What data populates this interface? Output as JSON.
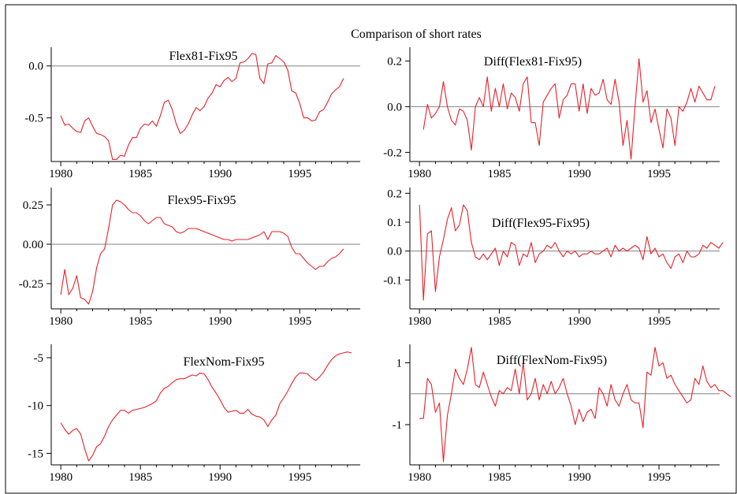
{
  "figure": {
    "title": "Comparison of short rates",
    "line_color": "#e8202a",
    "zero_line_color": "#808080"
  },
  "chart_data": [
    {
      "type": "line",
      "title": "Flex81-Fix95",
      "x_start": 1980.0,
      "x_step": 0.25,
      "xlim": [
        1979.4,
        1998.8
      ],
      "ylim": [
        -0.92,
        0.18
      ],
      "xticks": [
        1980,
        1985,
        1990,
        1995
      ],
      "yticks": [
        0.0,
        -0.5
      ],
      "ytick_labels": [
        "0.0",
        "-0.5"
      ],
      "zero_line": 0,
      "series": [
        {
          "values": [
            -0.48,
            -0.57,
            -0.56,
            -0.6,
            -0.63,
            -0.64,
            -0.53,
            -0.5,
            -0.58,
            -0.65,
            -0.66,
            -0.68,
            -0.72,
            -0.9,
            -0.9,
            -0.86,
            -0.87,
            -0.76,
            -0.69,
            -0.69,
            -0.6,
            -0.56,
            -0.57,
            -0.53,
            -0.58,
            -0.48,
            -0.35,
            -0.33,
            -0.42,
            -0.56,
            -0.65,
            -0.62,
            -0.56,
            -0.47,
            -0.4,
            -0.43,
            -0.39,
            -0.31,
            -0.26,
            -0.18,
            -0.2,
            -0.14,
            -0.11,
            -0.15,
            -0.12,
            0.03,
            0.04,
            0.07,
            0.12,
            0.11,
            -0.12,
            -0.17,
            0.02,
            0.03,
            0.1,
            0.07,
            0.04,
            -0.04,
            -0.24,
            -0.26,
            -0.36,
            -0.5,
            -0.5,
            -0.53,
            -0.52,
            -0.44,
            -0.42,
            -0.35,
            -0.27,
            -0.23,
            -0.2,
            -0.12
          ]
        }
      ]
    },
    {
      "type": "line",
      "title": "Diff(Flex81-Fix95)",
      "x_start": 1980.25,
      "x_step": 0.25,
      "xlim": [
        1979.4,
        1998.8
      ],
      "ylim": [
        -0.24,
        0.26
      ],
      "xticks": [
        1980,
        1985,
        1990,
        1995
      ],
      "yticks": [
        0.2,
        0.0,
        -0.2
      ],
      "ytick_labels": [
        "0.2",
        "0.0",
        "-0.2"
      ],
      "zero_line": 0,
      "series": [
        {
          "values": [
            -0.1,
            0.01,
            -0.05,
            -0.03,
            0.0,
            0.11,
            0.0,
            -0.06,
            -0.08,
            -0.01,
            -0.02,
            -0.06,
            -0.19,
            0.0,
            0.04,
            0.0,
            0.13,
            -0.02,
            0.08,
            0.0,
            0.1,
            -0.01,
            0.06,
            0.04,
            -0.02,
            0.1,
            0.13,
            -0.07,
            -0.07,
            -0.17,
            0.02,
            0.05,
            0.08,
            0.1,
            -0.05,
            0.03,
            0.05,
            0.1,
            0.1,
            -0.02,
            0.1,
            -0.03,
            0.08,
            0.05,
            0.06,
            0.12,
            0.03,
            0.01,
            0.12,
            0.02,
            -0.17,
            -0.06,
            -0.23,
            0.0,
            0.21,
            0.02,
            0.07,
            -0.07,
            -0.01,
            -0.1,
            -0.18,
            -0.01,
            -0.05,
            -0.17,
            0.0,
            -0.02,
            0.02,
            0.08,
            0.02,
            0.09,
            0.06,
            0.03,
            0.03,
            0.09
          ]
        }
      ]
    },
    {
      "type": "line",
      "title": "Flex95-Fix95",
      "x_start": 1980.0,
      "x_step": 0.25,
      "xlim": [
        1979.4,
        1998.8
      ],
      "ylim": [
        -0.41,
        0.36
      ],
      "xticks": [
        1980,
        1985,
        1990,
        1995
      ],
      "yticks": [
        0.25,
        0.0,
        -0.25
      ],
      "ytick_labels": [
        "0.25",
        "0.00",
        "-0.25"
      ],
      "zero_line": 0,
      "series": [
        {
          "values": [
            -0.32,
            -0.16,
            -0.32,
            -0.28,
            -0.2,
            -0.34,
            -0.35,
            -0.38,
            -0.3,
            -0.15,
            -0.06,
            -0.03,
            0.1,
            0.25,
            0.28,
            0.27,
            0.25,
            0.22,
            0.2,
            0.2,
            0.18,
            0.15,
            0.13,
            0.15,
            0.17,
            0.17,
            0.13,
            0.12,
            0.11,
            0.08,
            0.07,
            0.08,
            0.1,
            0.1,
            0.1,
            0.09,
            0.08,
            0.07,
            0.06,
            0.05,
            0.04,
            0.03,
            0.03,
            0.02,
            0.03,
            0.03,
            0.03,
            0.03,
            0.04,
            0.05,
            0.06,
            0.08,
            0.03,
            0.08,
            0.08,
            0.08,
            0.07,
            0.05,
            -0.02,
            -0.06,
            -0.06,
            -0.09,
            -0.12,
            -0.14,
            -0.16,
            -0.14,
            -0.14,
            -0.11,
            -0.09,
            -0.08,
            -0.06,
            -0.03
          ]
        }
      ]
    },
    {
      "type": "line",
      "title": "Diff(Flex95-Fix95)",
      "x_start": 1980.0,
      "x_step": 0.25,
      "xlim": [
        1979.4,
        1998.8
      ],
      "ylim": [
        -0.2,
        0.22
      ],
      "xticks": [
        1980,
        1985,
        1990,
        1995
      ],
      "yticks": [
        0.2,
        0.1,
        0.0,
        -0.1
      ],
      "ytick_labels": [
        "0.2",
        "0.1",
        "0.0",
        "-0.1"
      ],
      "zero_line": 0,
      "series": [
        {
          "values": [
            0.16,
            -0.17,
            0.06,
            0.07,
            -0.14,
            -0.02,
            0.04,
            0.11,
            0.15,
            0.07,
            0.09,
            0.16,
            0.14,
            0.03,
            -0.02,
            -0.03,
            -0.01,
            -0.03,
            -0.01,
            0.01,
            -0.05,
            0.0,
            -0.02,
            0.03,
            0.02,
            -0.05,
            -0.01,
            -0.02,
            0.03,
            -0.04,
            -0.01,
            0.0,
            0.02,
            0.01,
            0.03,
            0.0,
            -0.02,
            0.0,
            -0.01,
            0.0,
            -0.02,
            -0.01,
            -0.01,
            0.0,
            -0.01,
            -0.01,
            0.0,
            0.01,
            -0.02,
            0.02,
            0.0,
            0.01,
            0.0,
            0.01,
            0.02,
            0.01,
            -0.03,
            0.05,
            -0.01,
            0.01,
            -0.02,
            -0.01,
            -0.04,
            -0.06,
            -0.02,
            -0.01,
            -0.04,
            0.0,
            -0.02,
            -0.02,
            -0.01,
            0.02,
            0.01,
            0.03,
            0.02,
            0.01,
            0.03
          ]
        }
      ]
    },
    {
      "type": "line",
      "title": "FlexNom-Fix95",
      "x_start": 1980.0,
      "x_step": 0.25,
      "xlim": [
        1979.4,
        1998.8
      ],
      "ylim": [
        -16.2,
        -3.6
      ],
      "xticks": [
        1980,
        1985,
        1990,
        1995
      ],
      "yticks": [
        -5,
        -10,
        -15
      ],
      "ytick_labels": [
        "-5",
        "-10",
        "-15"
      ],
      "zero_line": null,
      "series": [
        {
          "values": [
            -11.8,
            -12.5,
            -13.0,
            -12.6,
            -12.4,
            -13.0,
            -14.5,
            -15.8,
            -15.2,
            -14.3,
            -14.0,
            -13.2,
            -12.2,
            -11.5,
            -11.0,
            -10.5,
            -10.5,
            -10.8,
            -10.5,
            -10.4,
            -10.3,
            -10.2,
            -10.0,
            -9.8,
            -9.5,
            -8.7,
            -8.2,
            -8.0,
            -7.6,
            -7.3,
            -7.2,
            -7.2,
            -7.0,
            -6.8,
            -6.9,
            -6.6,
            -6.7,
            -7.3,
            -8.1,
            -8.7,
            -9.4,
            -10.2,
            -10.7,
            -10.6,
            -10.5,
            -10.8,
            -10.8,
            -10.4,
            -10.9,
            -11.1,
            -11.2,
            -11.5,
            -12.2,
            -11.5,
            -11.0,
            -9.8,
            -9.2,
            -8.5,
            -7.7,
            -7.0,
            -6.6,
            -6.6,
            -6.7,
            -7.1,
            -7.4,
            -7.0,
            -6.5,
            -5.8,
            -5.2,
            -4.8,
            -4.6,
            -4.5,
            -4.4,
            -4.5
          ]
        }
      ]
    },
    {
      "type": "line",
      "title": "Diff(FlexNom-Fix95)",
      "x_start": 1980.0,
      "x_step": 0.25,
      "xlim": [
        1979.4,
        1998.8
      ],
      "ylim": [
        -2.3,
        1.6
      ],
      "xticks": [
        1980,
        1985,
        1990,
        1995
      ],
      "yticks": [
        1,
        -1
      ],
      "ytick_labels": [
        "1",
        "-1"
      ],
      "zero_line": 0,
      "series": [
        {
          "values": [
            -0.8,
            -0.8,
            0.5,
            0.3,
            -0.6,
            -0.3,
            -2.2,
            -0.7,
            0.0,
            0.8,
            0.5,
            0.3,
            0.8,
            1.5,
            0.3,
            0.2,
            0.7,
            0.3,
            -0.1,
            -0.4,
            0.1,
            0.0,
            0.2,
            0.1,
            0.8,
            0.0,
            1.0,
            -0.2,
            0.0,
            0.5,
            -0.2,
            0.3,
            0.0,
            0.4,
            0.0,
            0.2,
            0.5,
            0.0,
            -0.4,
            -1.0,
            -0.5,
            -0.9,
            -0.6,
            -0.5,
            -0.8,
            0.2,
            0.0,
            -0.4,
            0.3,
            -0.2,
            -0.4,
            0.0,
            0.3,
            -0.2,
            -0.3,
            -0.3,
            -1.1,
            0.7,
            0.6,
            1.5,
            0.9,
            1.0,
            0.5,
            0.6,
            0.3,
            0.1,
            -0.1,
            -0.3,
            -0.2,
            0.5,
            0.3,
            0.9,
            0.4,
            0.2,
            0.3,
            0.1,
            0.1,
            0.0,
            -0.1
          ]
        }
      ]
    }
  ]
}
